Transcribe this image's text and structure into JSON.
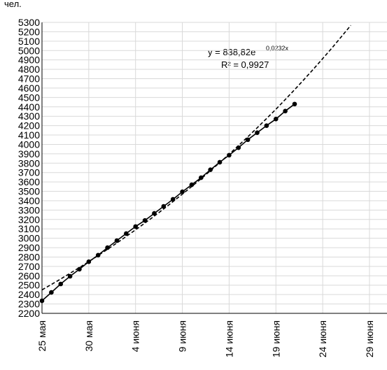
{
  "chart_data": {
    "type": "line",
    "y_unit_label": "чел.",
    "categories": [
      "25 мая",
      null,
      null,
      null,
      null,
      "30 мая",
      null,
      null,
      null,
      null,
      "4 июня",
      null,
      null,
      null,
      null,
      "9 июня",
      null,
      null,
      null,
      null,
      "14 июня",
      null,
      null,
      null,
      null,
      "19 июня",
      null,
      null,
      null,
      null,
      "24 июня",
      null,
      null,
      null,
      null,
      "29 июня"
    ],
    "series": [
      {
        "color": "#000000",
        "dashed": false,
        "markers": true,
        "values": [
          2334,
          2423,
          2513,
          2595,
          2670,
          2750,
          2820,
          2900,
          2975,
          3050,
          3125,
          3190,
          3265,
          3340,
          3415,
          3495,
          3570,
          3645,
          3730,
          3810,
          3885,
          3965,
          4050,
          4125,
          4200,
          4270,
          4355,
          4430,
          null,
          null,
          null,
          null,
          null,
          null,
          null,
          null
        ]
      },
      {
        "color": "#000000",
        "dashed": true,
        "markers": false,
        "values": [
          2450,
          2508,
          2566,
          2627,
          2688,
          2751,
          2816,
          2882,
          2950,
          3019,
          3090,
          3162,
          3236,
          3312,
          3390,
          3470,
          3551,
          3634,
          3720,
          3807,
          3896,
          3988,
          4081,
          4177,
          4275,
          4375,
          4478,
          4583,
          4691,
          4801,
          4914,
          5029,
          5147,
          5268,
          null,
          null
        ]
      }
    ],
    "trend_equation": "y = 838,82e",
    "trend_exponent": "0,0232x",
    "trend_r2": "R² = 0,9927",
    "ylim": [
      2200,
      5300
    ],
    "yticks": [
      2200,
      2300,
      2400,
      2500,
      2600,
      2700,
      2800,
      2900,
      3000,
      3100,
      3200,
      3300,
      3400,
      3500,
      3600,
      3700,
      3800,
      3900,
      4000,
      4100,
      4200,
      4300,
      4400,
      4500,
      4600,
      4700,
      4800,
      4900,
      5000,
      5100,
      5200,
      5300
    ],
    "grid": true
  }
}
